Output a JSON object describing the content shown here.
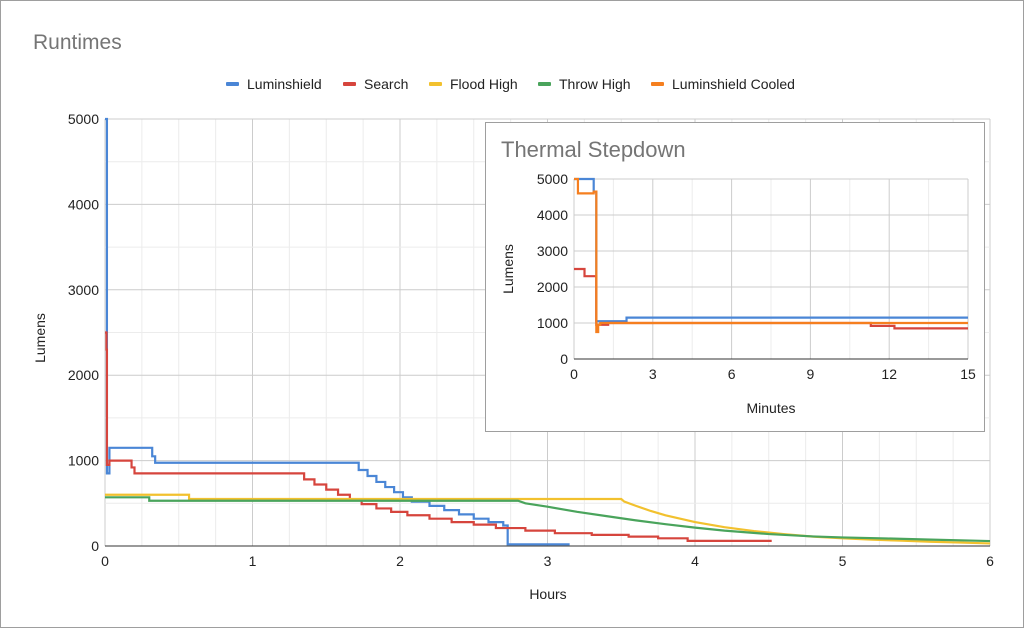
{
  "colors": {
    "Luminshield": "#4a86d6",
    "Search": "#d6453d",
    "Flood High": "#f2c12e",
    "Throw High": "#4aa45c",
    "Luminshield Cooled": "#f57f1f"
  },
  "chart_data": [
    {
      "type": "line",
      "title": "Runtimes",
      "xlabel": "Hours",
      "ylabel": "Lumens",
      "xlim": [
        0,
        6
      ],
      "ylim": [
        0,
        5000
      ],
      "xticks": [
        "0",
        "1",
        "2",
        "3",
        "4",
        "5",
        "6"
      ],
      "yticks": [
        "0",
        "1000",
        "2000",
        "3000",
        "4000",
        "5000"
      ],
      "legend": "top",
      "series": [
        {
          "name": "Luminshield",
          "points": [
            [
              0,
              5000
            ],
            [
              0.013,
              5000
            ],
            [
              0.013,
              850
            ],
            [
              0.03,
              850
            ],
            [
              0.03,
              1150
            ],
            [
              0.32,
              1150
            ],
            [
              0.32,
              1050
            ],
            [
              0.34,
              1050
            ],
            [
              0.34,
              975
            ],
            [
              1.72,
              975
            ],
            [
              1.72,
              890
            ],
            [
              1.78,
              890
            ],
            [
              1.78,
              820
            ],
            [
              1.84,
              820
            ],
            [
              1.84,
              750
            ],
            [
              1.9,
              750
            ],
            [
              1.9,
              690
            ],
            [
              1.96,
              690
            ],
            [
              1.96,
              630
            ],
            [
              2.02,
              630
            ],
            [
              2.02,
              570
            ],
            [
              2.08,
              570
            ],
            [
              2.08,
              520
            ],
            [
              2.2,
              520
            ],
            [
              2.2,
              470
            ],
            [
              2.3,
              470
            ],
            [
              2.3,
              420
            ],
            [
              2.4,
              420
            ],
            [
              2.4,
              370
            ],
            [
              2.5,
              370
            ],
            [
              2.5,
              320
            ],
            [
              2.6,
              320
            ],
            [
              2.6,
              280
            ],
            [
              2.7,
              280
            ],
            [
              2.7,
              240
            ],
            [
              2.73,
              240
            ],
            [
              2.73,
              20
            ],
            [
              3.15,
              20
            ]
          ]
        },
        {
          "name": "Search",
          "points": [
            [
              0,
              2500
            ],
            [
              0.01,
              2500
            ],
            [
              0.01,
              2300
            ],
            [
              0.013,
              2300
            ],
            [
              0.013,
              950
            ],
            [
              0.03,
              950
            ],
            [
              0.03,
              1000
            ],
            [
              0.18,
              1000
            ],
            [
              0.18,
              920
            ],
            [
              0.2,
              920
            ],
            [
              0.2,
              850
            ],
            [
              1.35,
              850
            ],
            [
              1.35,
              780
            ],
            [
              1.42,
              780
            ],
            [
              1.42,
              720
            ],
            [
              1.5,
              720
            ],
            [
              1.5,
              660
            ],
            [
              1.58,
              660
            ],
            [
              1.58,
              600
            ],
            [
              1.66,
              600
            ],
            [
              1.66,
              540
            ],
            [
              1.74,
              540
            ],
            [
              1.74,
              490
            ],
            [
              1.84,
              490
            ],
            [
              1.84,
              440
            ],
            [
              1.94,
              440
            ],
            [
              1.94,
              400
            ],
            [
              2.05,
              400
            ],
            [
              2.05,
              360
            ],
            [
              2.2,
              360
            ],
            [
              2.2,
              320
            ],
            [
              2.35,
              320
            ],
            [
              2.35,
              280
            ],
            [
              2.5,
              280
            ],
            [
              2.5,
              250
            ],
            [
              2.65,
              250
            ],
            [
              2.65,
              210
            ],
            [
              2.85,
              210
            ],
            [
              2.85,
              180
            ],
            [
              3.05,
              180
            ],
            [
              3.05,
              150
            ],
            [
              3.3,
              150
            ],
            [
              3.3,
              130
            ],
            [
              3.55,
              130
            ],
            [
              3.55,
              110
            ],
            [
              3.75,
              110
            ],
            [
              3.75,
              90
            ],
            [
              3.95,
              90
            ],
            [
              3.95,
              60
            ],
            [
              4.52,
              60
            ]
          ]
        },
        {
          "name": "Flood High",
          "points": [
            [
              0,
              600
            ],
            [
              0.57,
              600
            ],
            [
              0.57,
              550
            ],
            [
              3.5,
              550
            ],
            [
              3.52,
              520
            ],
            [
              3.6,
              470
            ],
            [
              3.7,
              410
            ],
            [
              3.8,
              360
            ],
            [
              3.9,
              320
            ],
            [
              4,
              280
            ],
            [
              4.2,
              220
            ],
            [
              4.4,
              175
            ],
            [
              4.6,
              140
            ],
            [
              4.8,
              110
            ],
            [
              5,
              90
            ],
            [
              5.2,
              75
            ],
            [
              5.4,
              62
            ],
            [
              5.6,
              50
            ],
            [
              5.8,
              40
            ],
            [
              6,
              30
            ]
          ]
        },
        {
          "name": "Throw High",
          "points": [
            [
              0,
              570
            ],
            [
              0.3,
              570
            ],
            [
              0.3,
              530
            ],
            [
              2.8,
              530
            ],
            [
              2.85,
              500
            ],
            [
              3.0,
              460
            ],
            [
              3.2,
              400
            ],
            [
              3.4,
              350
            ],
            [
              3.6,
              300
            ],
            [
              3.8,
              255
            ],
            [
              4,
              215
            ],
            [
              4.2,
              180
            ],
            [
              4.5,
              140
            ],
            [
              4.8,
              112
            ],
            [
              5.0,
              100
            ],
            [
              5.3,
              88
            ],
            [
              5.6,
              75
            ],
            [
              5.9,
              62
            ],
            [
              6,
              58
            ]
          ]
        }
      ]
    },
    {
      "type": "line",
      "title": "Thermal Stepdown",
      "xlabel": "Minutes",
      "ylabel": "Lumens",
      "xlim": [
        0,
        15
      ],
      "ylim": [
        0,
        5000
      ],
      "xticks": [
        "0",
        "3",
        "6",
        "9",
        "12",
        "15"
      ],
      "yticks": [
        "0",
        "1000",
        "2000",
        "3000",
        "4000",
        "5000"
      ],
      "series": [
        {
          "name": "Luminshield",
          "points": [
            [
              0,
              5000
            ],
            [
              0.75,
              5000
            ],
            [
              0.75,
              4650
            ],
            [
              0.85,
              4650
            ],
            [
              0.85,
              1050
            ],
            [
              2.0,
              1050
            ],
            [
              2.0,
              1150
            ],
            [
              15,
              1150
            ]
          ]
        },
        {
          "name": "Search",
          "points": [
            [
              0,
              2500
            ],
            [
              0.4,
              2500
            ],
            [
              0.4,
              2300
            ],
            [
              0.85,
              2300
            ],
            [
              0.85,
              950
            ],
            [
              1.3,
              950
            ],
            [
              1.3,
              1000
            ],
            [
              11.3,
              1000
            ],
            [
              11.3,
              920
            ],
            [
              12.2,
              920
            ],
            [
              12.2,
              850
            ],
            [
              15,
              850
            ]
          ]
        },
        {
          "name": "Luminshield Cooled",
          "points": [
            [
              0,
              5000
            ],
            [
              0.15,
              5000
            ],
            [
              0.15,
              4600
            ],
            [
              0.75,
              4600
            ],
            [
              0.75,
              4650
            ],
            [
              0.85,
              4650
            ],
            [
              0.85,
              750
            ],
            [
              0.92,
              750
            ],
            [
              0.92,
              950
            ],
            [
              1.0,
              950
            ],
            [
              1.0,
              1000
            ],
            [
              15,
              1000
            ]
          ]
        }
      ]
    }
  ]
}
